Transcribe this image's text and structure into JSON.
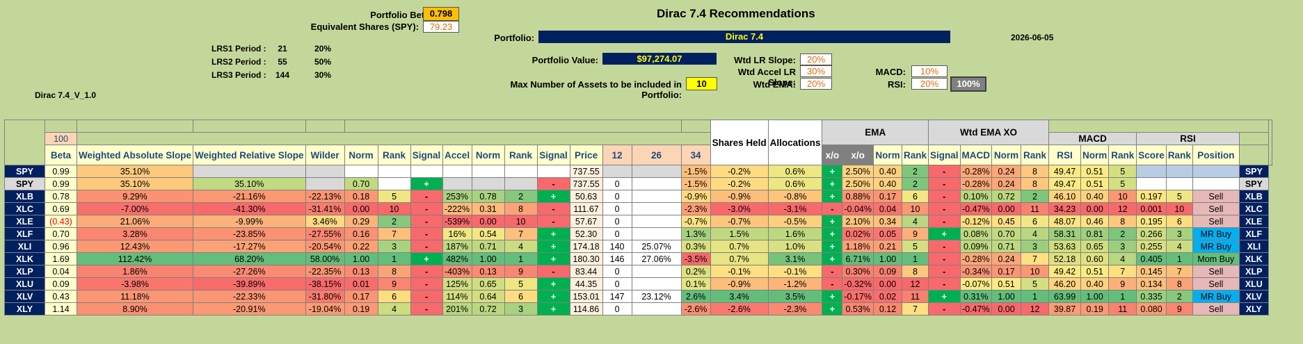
{
  "title": "Dirac 7.4 Recommendations",
  "version": "Dirac 7.4_V_1.0",
  "date": "2026-06-05",
  "portfolio_beta": {
    "label": "Portfolio Beta (SPY):",
    "value": "0.798"
  },
  "equiv_shares": {
    "label": "Equivalent Shares (SPY):",
    "value": "79.23"
  },
  "portfolio": {
    "label": "Portfolio:",
    "value": "Dirac 7.4"
  },
  "portfolio_value": {
    "label": "Portfolio Value:",
    "value": "$97,274.07"
  },
  "max_assets": {
    "label": "Max Number of Assets to be included in Portfolio:",
    "value": "10"
  },
  "lrs": [
    {
      "label": "LRS1 Period :",
      "period": "21",
      "pct": "20%"
    },
    {
      "label": "LRS2 Period :",
      "period": "55",
      "pct": "50%"
    },
    {
      "label": "LRS3 Period :",
      "period": "144",
      "pct": "30%"
    }
  ],
  "weights": {
    "wtd_lr_slope": {
      "label": "Wtd LR Slope:",
      "value": "20%"
    },
    "wtd_accel": {
      "label": "Wtd Accel LR Slope:",
      "value": "30%"
    },
    "wtd_ema": {
      "label": "Wtd EMA:",
      "value": "20%"
    },
    "macd": {
      "label": "MACD:",
      "value": "10%"
    },
    "rsi": {
      "label": "RSI:",
      "value": "20%"
    },
    "total": "100%"
  },
  "beta_header_value": "100",
  "groups": {
    "ema": "EMA",
    "wtd_ema_xo": "Wtd EMA XO",
    "macd": "MACD",
    "rsi": "RSI"
  },
  "headers": [
    "Beta",
    "Weighted Absolute Slope",
    "Weighted Relative Slope",
    "Wilder",
    "Norm",
    "Rank",
    "Signal",
    "Accel",
    "Norm",
    "Rank",
    "Signal",
    "Price",
    "Shares Held",
    "Allocations",
    "12",
    "26",
    "34",
    "x/o",
    "x/o",
    "Norm",
    "Rank",
    "Signal",
    "MACD",
    "Norm",
    "Rank",
    "RSI",
    "Norm",
    "Rank",
    "Score",
    "Rank",
    "Position"
  ],
  "rows": [
    {
      "t": "SPY",
      "c": [
        "0.99",
        "35.10%",
        "",
        "",
        "",
        "",
        "",
        "",
        "",
        "",
        "",
        "737.55",
        "",
        "",
        "-1.5%",
        "-0.2%",
        "0.6%",
        "+",
        "2.50%",
        "0.40",
        "2",
        "-",
        "-0.28%",
        "0.24",
        "8",
        "49.47",
        "0.51",
        "5",
        "",
        "",
        ""
      ]
    },
    {
      "t": "SPY",
      "c": [
        "0.99",
        "35.10%",
        "35.10%",
        "",
        "0.70",
        "",
        "+",
        "",
        "",
        "",
        "-",
        "737.55",
        "0",
        "",
        "-1.5%",
        "-0.2%",
        "0.6%",
        "+",
        "2.50%",
        "0.40",
        "2",
        "-",
        "-0.28%",
        "0.24",
        "8",
        "49.47",
        "0.51",
        "5",
        "",
        "",
        ""
      ]
    },
    {
      "t": "XLB",
      "c": [
        "0.78",
        "9.29%",
        "-21.16%",
        "-22.13%",
        "0.18",
        "5",
        "-",
        "253%",
        "0.78",
        "2",
        "+",
        "50.63",
        "0",
        "",
        "-0.9%",
        "-0.9%",
        "-0.8%",
        "+",
        "0.88%",
        "0.17",
        "6",
        "-",
        "0.10%",
        "0.72",
        "2",
        "46.10",
        "0.40",
        "10",
        "0.197",
        "5",
        "Sell"
      ]
    },
    {
      "t": "XLC",
      "c": [
        "0.69",
        "-7.00%",
        "-41.30%",
        "-31.41%",
        "0.00",
        "10",
        "-",
        "-222%",
        "0.31",
        "8",
        "-",
        "111.67",
        "0",
        "",
        "-2.3%",
        "-3.0%",
        "-3.1%",
        "-",
        "-0.04%",
        "0.04",
        "10",
        "-",
        "-0.47%",
        "0.00",
        "11",
        "34.23",
        "0.00",
        "12",
        "0.001",
        "10",
        "Sell"
      ]
    },
    {
      "t": "XLE",
      "c": [
        "(0.43)",
        "21.06%",
        "-9.99%",
        "3.46%",
        "0.29",
        "2",
        "-",
        "-539%",
        "0.00",
        "10",
        "-",
        "57.67",
        "0",
        "",
        "-0.7%",
        "-0.7%",
        "-0.5%",
        "+",
        "2.10%",
        "0.34",
        "4",
        "-",
        "-0.12%",
        "0.45",
        "6",
        "48.07",
        "0.46",
        "8",
        "0.195",
        "6",
        "Sell"
      ]
    },
    {
      "t": "XLF",
      "c": [
        "0.70",
        "3.28%",
        "-23.85%",
        "-27.55%",
        "0.16",
        "7",
        "-",
        "16%",
        "0.54",
        "7",
        "+",
        "52.30",
        "0",
        "",
        "1.3%",
        "1.5%",
        "1.6%",
        "+",
        "0.02%",
        "0.05",
        "9",
        "+",
        "0.08%",
        "0.70",
        "4",
        "58.31",
        "0.81",
        "2",
        "0.266",
        "3",
        "MR Buy"
      ]
    },
    {
      "t": "XLI",
      "c": [
        "0.96",
        "12.43%",
        "-17.27%",
        "-20.54%",
        "0.22",
        "3",
        "-",
        "187%",
        "0.71",
        "4",
        "+",
        "174.18",
        "140",
        "25.07%",
        "0.3%",
        "0.7%",
        "1.0%",
        "+",
        "1.18%",
        "0.21",
        "5",
        "-",
        "0.09%",
        "0.71",
        "3",
        "53.63",
        "0.65",
        "3",
        "0.255",
        "4",
        "MR Buy"
      ]
    },
    {
      "t": "XLK",
      "c": [
        "1.69",
        "112.42%",
        "68.20%",
        "58.00%",
        "1.00",
        "1",
        "+",
        "482%",
        "1.00",
        "1",
        "+",
        "180.30",
        "146",
        "27.06%",
        "-3.5%",
        "0.7%",
        "3.1%",
        "+",
        "6.71%",
        "1.00",
        "1",
        "-",
        "-0.28%",
        "0.24",
        "7",
        "52.18",
        "0.60",
        "4",
        "0.405",
        "1",
        "Mom Buy"
      ]
    },
    {
      "t": "XLP",
      "c": [
        "0.04",
        "1.86%",
        "-27.26%",
        "-22.35%",
        "0.13",
        "8",
        "-",
        "-403%",
        "0.13",
        "9",
        "-",
        "83.44",
        "0",
        "",
        "0.2%",
        "-0.1%",
        "-0.1%",
        "-",
        "0.30%",
        "0.09",
        "8",
        "-",
        "-0.34%",
        "0.17",
        "10",
        "49.42",
        "0.51",
        "7",
        "0.145",
        "7",
        "Sell"
      ]
    },
    {
      "t": "XLU",
      "c": [
        "0.09",
        "-3.98%",
        "-39.89%",
        "-38.15%",
        "0.01",
        "9",
        "-",
        "125%",
        "0.65",
        "5",
        "+",
        "44.35",
        "0",
        "",
        "0.1%",
        "-0.9%",
        "-1.2%",
        "-",
        "-0.32%",
        "0.00",
        "12",
        "-",
        "-0.07%",
        "0.51",
        "5",
        "46.20",
        "0.40",
        "9",
        "0.134",
        "8",
        "Sell"
      ]
    },
    {
      "t": "XLV",
      "c": [
        "0.43",
        "11.18%",
        "-22.33%",
        "-31.80%",
        "0.17",
        "6",
        "-",
        "114%",
        "0.64",
        "6",
        "+",
        "153.01",
        "147",
        "23.12%",
        "2.6%",
        "3.4%",
        "3.5%",
        "+",
        "-0.17%",
        "0.02",
        "11",
        "+",
        "0.31%",
        "1.00",
        "1",
        "63.99",
        "1.00",
        "1",
        "0.335",
        "2",
        "MR Buy"
      ]
    },
    {
      "t": "XLY",
      "c": [
        "1.14",
        "8.90%",
        "-20.91%",
        "-19.04%",
        "0.19",
        "4",
        "-",
        "201%",
        "0.72",
        "3",
        "+",
        "114.86",
        "0",
        "",
        "-2.6%",
        "-2.6%",
        "-2.3%",
        "+",
        "0.53%",
        "0.12",
        "7",
        "-",
        "-0.47%",
        "0.00",
        "12",
        "39.87",
        "0.19",
        "11",
        "0.080",
        "9",
        "Sell"
      ]
    }
  ],
  "colors": {
    "background": "#c4d79b",
    "navy": "#002060",
    "yellow": "#ffff00",
    "green": "#63be7b",
    "red": "#f8696b",
    "orange": "#ffc000",
    "blue": "#00b0f0",
    "pink": "#f2b8b8"
  }
}
